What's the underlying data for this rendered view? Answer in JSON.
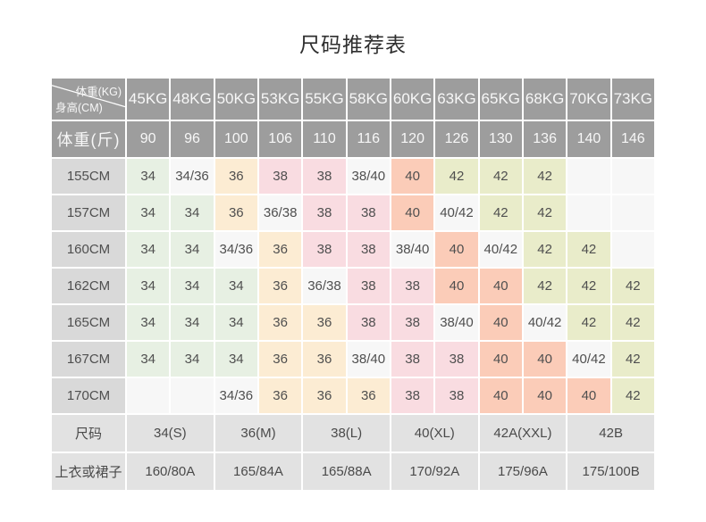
{
  "title": "尺码推荐表",
  "table": {
    "corner": {
      "top_right": "体重(KG)",
      "bottom_left": "身高(CM)"
    },
    "weight_kg": [
      "45KG",
      "48KG",
      "50KG",
      "53KG",
      "55KG",
      "58KG",
      "60KG",
      "63KG",
      "65KG",
      "68KG",
      "70KG",
      "73KG"
    ],
    "weight_jin_label": "体重(斤)",
    "weight_jin": [
      "90",
      "96",
      "100",
      "106",
      "110",
      "116",
      "120",
      "126",
      "130",
      "136",
      "140",
      "146"
    ],
    "rows": [
      {
        "label": "155CM",
        "cells": [
          {
            "v": "34",
            "c": "green"
          },
          {
            "v": "34/36",
            "c": "white"
          },
          {
            "v": "36",
            "c": "peach"
          },
          {
            "v": "38",
            "c": "pink"
          },
          {
            "v": "38",
            "c": "pink"
          },
          {
            "v": "38/40",
            "c": "white"
          },
          {
            "v": "40",
            "c": "salmon"
          },
          {
            "v": "42",
            "c": "olive"
          },
          {
            "v": "42",
            "c": "olive"
          },
          {
            "v": "42",
            "c": "olive"
          },
          {
            "v": "",
            "c": "blank"
          },
          {
            "v": "",
            "c": "blank"
          }
        ]
      },
      {
        "label": "157CM",
        "cells": [
          {
            "v": "34",
            "c": "green"
          },
          {
            "v": "34",
            "c": "green"
          },
          {
            "v": "36",
            "c": "peach"
          },
          {
            "v": "36/38",
            "c": "white"
          },
          {
            "v": "38",
            "c": "pink"
          },
          {
            "v": "38",
            "c": "pink"
          },
          {
            "v": "40",
            "c": "salmon"
          },
          {
            "v": "40/42",
            "c": "white"
          },
          {
            "v": "42",
            "c": "olive"
          },
          {
            "v": "42",
            "c": "olive"
          },
          {
            "v": "",
            "c": "blank"
          },
          {
            "v": "",
            "c": "blank"
          }
        ]
      },
      {
        "label": "160CM",
        "cells": [
          {
            "v": "34",
            "c": "green"
          },
          {
            "v": "34",
            "c": "green"
          },
          {
            "v": "34/36",
            "c": "white"
          },
          {
            "v": "36",
            "c": "peach"
          },
          {
            "v": "38",
            "c": "pink"
          },
          {
            "v": "38",
            "c": "pink"
          },
          {
            "v": "38/40",
            "c": "white"
          },
          {
            "v": "40",
            "c": "salmon"
          },
          {
            "v": "40/42",
            "c": "white"
          },
          {
            "v": "42",
            "c": "olive"
          },
          {
            "v": "42",
            "c": "olive"
          },
          {
            "v": "",
            "c": "blank"
          }
        ]
      },
      {
        "label": "162CM",
        "cells": [
          {
            "v": "34",
            "c": "green"
          },
          {
            "v": "34",
            "c": "green"
          },
          {
            "v": "34",
            "c": "green"
          },
          {
            "v": "36",
            "c": "peach"
          },
          {
            "v": "36/38",
            "c": "white"
          },
          {
            "v": "38",
            "c": "pink"
          },
          {
            "v": "38",
            "c": "pink"
          },
          {
            "v": "40",
            "c": "salmon"
          },
          {
            "v": "40",
            "c": "salmon"
          },
          {
            "v": "42",
            "c": "olive"
          },
          {
            "v": "42",
            "c": "olive"
          },
          {
            "v": "42",
            "c": "olive"
          }
        ]
      },
      {
        "label": "165CM",
        "cells": [
          {
            "v": "34",
            "c": "green"
          },
          {
            "v": "34",
            "c": "green"
          },
          {
            "v": "34",
            "c": "green"
          },
          {
            "v": "36",
            "c": "peach"
          },
          {
            "v": "36",
            "c": "peach"
          },
          {
            "v": "38",
            "c": "pink"
          },
          {
            "v": "38",
            "c": "pink"
          },
          {
            "v": "38/40",
            "c": "white"
          },
          {
            "v": "40",
            "c": "salmon"
          },
          {
            "v": "40/42",
            "c": "white"
          },
          {
            "v": "42",
            "c": "olive"
          },
          {
            "v": "42",
            "c": "olive"
          }
        ]
      },
      {
        "label": "167CM",
        "cells": [
          {
            "v": "34",
            "c": "green"
          },
          {
            "v": "34",
            "c": "green"
          },
          {
            "v": "34",
            "c": "green"
          },
          {
            "v": "36",
            "c": "peach"
          },
          {
            "v": "36",
            "c": "peach"
          },
          {
            "v": "38/40",
            "c": "white"
          },
          {
            "v": "38",
            "c": "pink"
          },
          {
            "v": "38",
            "c": "pink"
          },
          {
            "v": "40",
            "c": "salmon"
          },
          {
            "v": "40",
            "c": "salmon"
          },
          {
            "v": "40/42",
            "c": "white"
          },
          {
            "v": "42",
            "c": "olive"
          }
        ]
      },
      {
        "label": "170CM",
        "cells": [
          {
            "v": "",
            "c": "blank"
          },
          {
            "v": "",
            "c": "blank"
          },
          {
            "v": "34/36",
            "c": "white"
          },
          {
            "v": "36",
            "c": "peach"
          },
          {
            "v": "36",
            "c": "peach"
          },
          {
            "v": "36",
            "c": "peach"
          },
          {
            "v": "38",
            "c": "pink"
          },
          {
            "v": "38",
            "c": "pink"
          },
          {
            "v": "40",
            "c": "salmon"
          },
          {
            "v": "40",
            "c": "salmon"
          },
          {
            "v": "40",
            "c": "salmon"
          },
          {
            "v": "42",
            "c": "olive"
          }
        ]
      }
    ],
    "size_row": {
      "label": "尺码",
      "values": [
        "34(S)",
        "36(M)",
        "38(L)",
        "40(XL)",
        "42A(XXL)",
        "42B"
      ]
    },
    "garment_row": {
      "label": "上衣或裙子",
      "values": [
        "160/80A",
        "165/84A",
        "165/88A",
        "170/92A",
        "175/96A",
        "175/100B"
      ]
    }
  },
  "colors": {
    "header_bg": "#9d9d9d",
    "row_label_bg": "#d9d9d9",
    "footer_bg": "#e2e2e2",
    "green": "#e7f0e3",
    "peach": "#fcecd3",
    "pink": "#f9dce1",
    "salmon": "#fbccb8",
    "olive": "#e9ecca",
    "white": "#f7f7f7",
    "blank": "#f7f7f7"
  }
}
